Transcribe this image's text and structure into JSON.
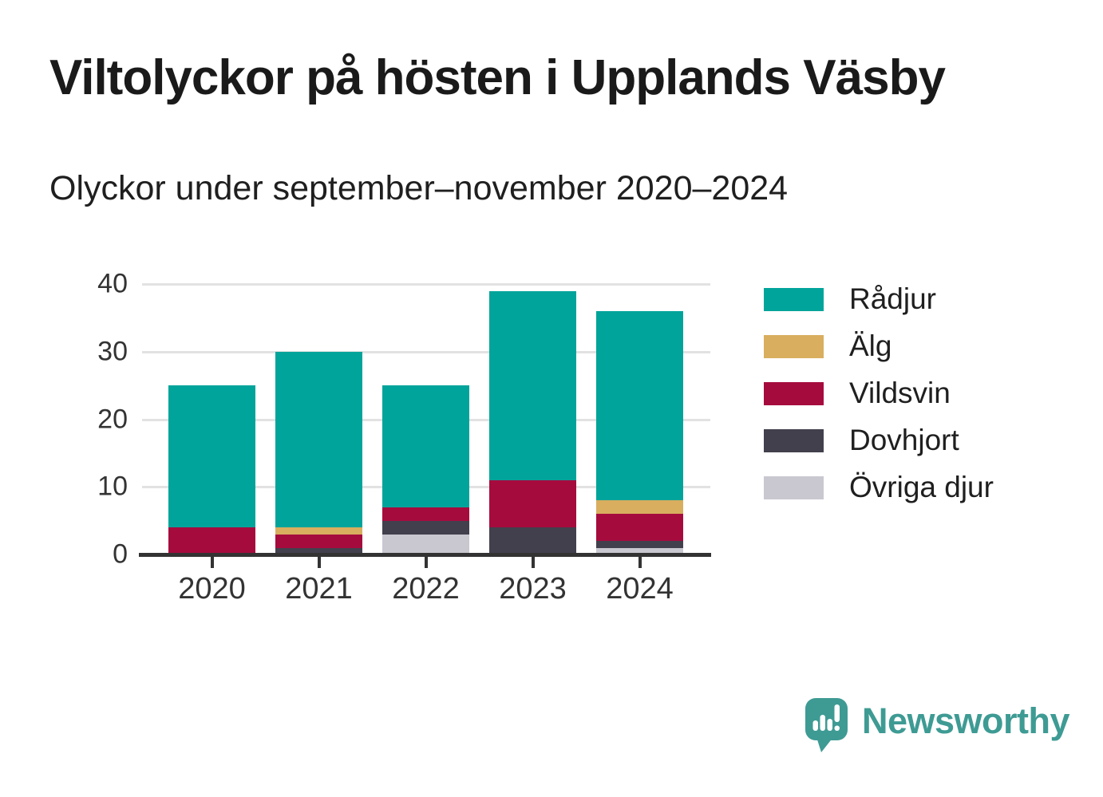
{
  "header": {
    "title": "Viltolyckor på hösten i Upplands Väsby",
    "subtitle": "Olyckor under september–november 2020–2024"
  },
  "chart_data": {
    "type": "bar",
    "stacked": true,
    "title": "Viltolyckor på hösten i Upplands Väsby",
    "subtitle": "Olyckor under september–november 2020–2024",
    "categories": [
      "2020",
      "2021",
      "2022",
      "2023",
      "2024"
    ],
    "series": [
      {
        "name": "Övriga djur",
        "color": "#C9C8D0",
        "values": [
          0,
          0,
          3,
          0,
          1
        ]
      },
      {
        "name": "Dovhjort",
        "color": "#42404D",
        "values": [
          0,
          1,
          2,
          4,
          1
        ]
      },
      {
        "name": "Vildsvin",
        "color": "#A60B3E",
        "values": [
          4,
          2,
          2,
          7,
          4
        ]
      },
      {
        "name": "Älg",
        "color": "#D9AE5F",
        "values": [
          0,
          1,
          0,
          0,
          2
        ]
      },
      {
        "name": "Rådjur",
        "color": "#00A49A",
        "values": [
          21,
          26,
          18,
          28,
          28
        ]
      }
    ],
    "totals": [
      25,
      30,
      25,
      39,
      36
    ],
    "xlabel": "",
    "ylabel": "",
    "yticks": [
      0,
      10,
      20,
      30,
      40
    ],
    "ylim": [
      0,
      40
    ],
    "grid": true,
    "legend_position": "right",
    "legend_order": [
      "Rådjur",
      "Älg",
      "Vildsvin",
      "Dovhjort",
      "Övriga djur"
    ]
  },
  "colors": {
    "axis": "#333333",
    "gridline": "#E2E2E2",
    "title_text": "#1A1A1A",
    "logo_teal": "#3E9B94"
  },
  "logo": {
    "brand": "Newsworthy",
    "icon": "speech-bubble-bar-chart-icon"
  }
}
